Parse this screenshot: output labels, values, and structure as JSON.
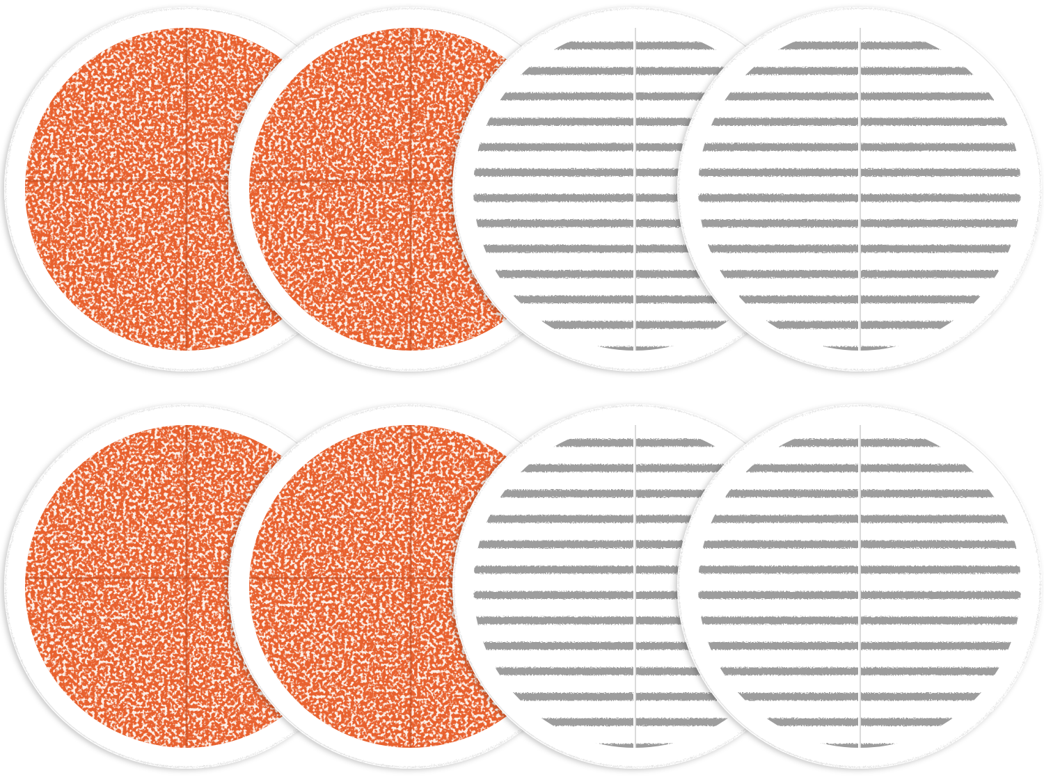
{
  "scene": {
    "background": "#ffffff",
    "rows": 2,
    "pads_per_row": 4
  },
  "pad_types": {
    "scrubby": {
      "base": "#e8612e",
      "speckle": "#f6d9cc",
      "rim": "#ffffff",
      "seam": "#c94f22"
    },
    "soft_touch": {
      "base": "#ffffff",
      "stripe": "#8c8c8c",
      "rim": "#ffffff",
      "seam": "#6e6e6e"
    }
  },
  "pads": [
    {
      "row": 0,
      "type": "scrubby"
    },
    {
      "row": 0,
      "type": "scrubby"
    },
    {
      "row": 0,
      "type": "soft_touch"
    },
    {
      "row": 0,
      "type": "soft_touch"
    },
    {
      "row": 1,
      "type": "scrubby"
    },
    {
      "row": 1,
      "type": "scrubby"
    },
    {
      "row": 1,
      "type": "soft_touch"
    },
    {
      "row": 1,
      "type": "soft_touch"
    }
  ]
}
